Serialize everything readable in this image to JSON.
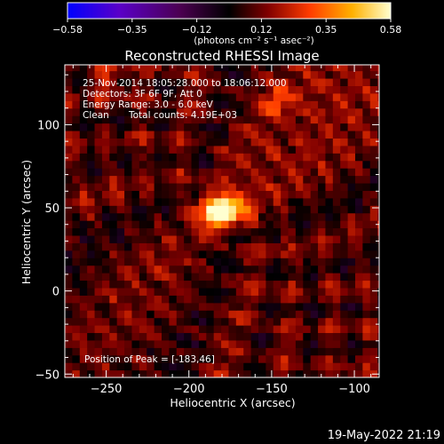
{
  "colorbar": {
    "ticks": [
      "−0.58",
      "−0.35",
      "−0.12",
      "0.12",
      "0.35",
      "0.58"
    ],
    "unit_label": "(photons cm⁻² s⁻¹ asec⁻²)",
    "colors": [
      "#0000ff",
      "#5a00c8",
      "#4b0050",
      "#000000",
      "#800000",
      "#ff3c00",
      "#ffb000",
      "#ffffd0"
    ]
  },
  "chart_data": {
    "type": "heatmap",
    "title": "Reconstructed RHESSI Image",
    "xlabel": "Heliocentric X (arcsec)",
    "ylabel": "Heliocentric Y (arcsec)",
    "xlim": [
      -275,
      -85
    ],
    "ylim": [
      -52,
      136
    ],
    "x_ticks": [
      -250,
      -200,
      -150,
      -100
    ],
    "y_ticks": [
      -50,
      0,
      50,
      100
    ],
    "x_tick_labels": [
      "−250",
      "−200",
      "−150",
      "−100"
    ],
    "y_tick_labels": [
      "−50",
      "0",
      "50",
      "100"
    ],
    "peak": [
      -183,
      46
    ],
    "vmin": -0.58,
    "vmax": 0.58,
    "annotations": {
      "time": "25-Nov-2014 18:05:28.000 to 18:06:12.000",
      "detectors": "Detectors: 3F 6F 9F, Att 0",
      "energy": "Energy Range: 3.0 - 6.0 keV",
      "method": "Clean",
      "counts": "Total counts: 4.19E+03",
      "peak_text": "Position of Peak = [-183,46]"
    }
  },
  "footer": {
    "timestamp": "19-May-2022 21:19"
  }
}
